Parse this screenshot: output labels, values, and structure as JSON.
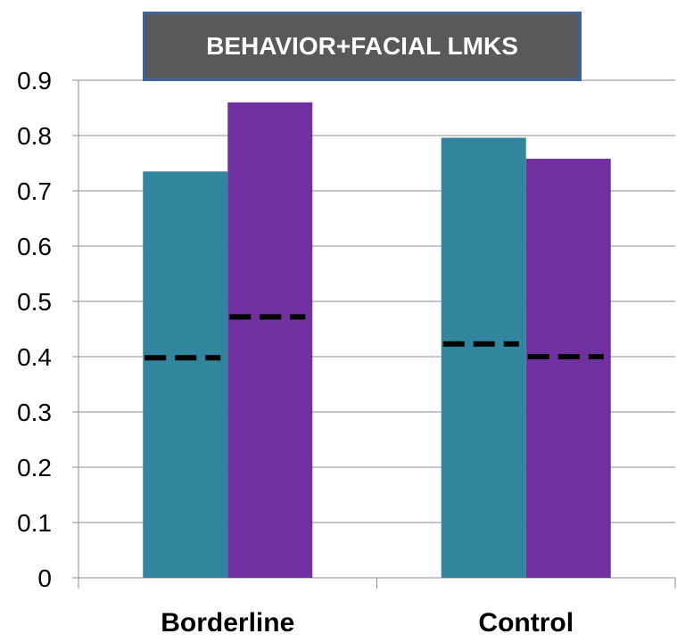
{
  "chart_data": {
    "type": "bar",
    "title": "BEHAVIOR+FACIAL LMKS",
    "categories": [
      "Borderline",
      "Control"
    ],
    "series": [
      {
        "values": [
          0.735,
          0.796
        ],
        "color": "#31859c",
        "baseline": [
          0.398,
          0.423
        ]
      },
      {
        "values": [
          0.86,
          0.758
        ],
        "color": "#7030a0",
        "baseline": [
          0.472,
          0.4
        ]
      }
    ],
    "ylim": [
      0,
      0.9
    ],
    "yticks": [
      "0",
      "0.1",
      "0.2",
      "0.3",
      "0.4",
      "0.5",
      "0.6",
      "0.7",
      "0.8",
      "0.9"
    ],
    "grid": true,
    "xlabel": "",
    "ylabel": ""
  }
}
